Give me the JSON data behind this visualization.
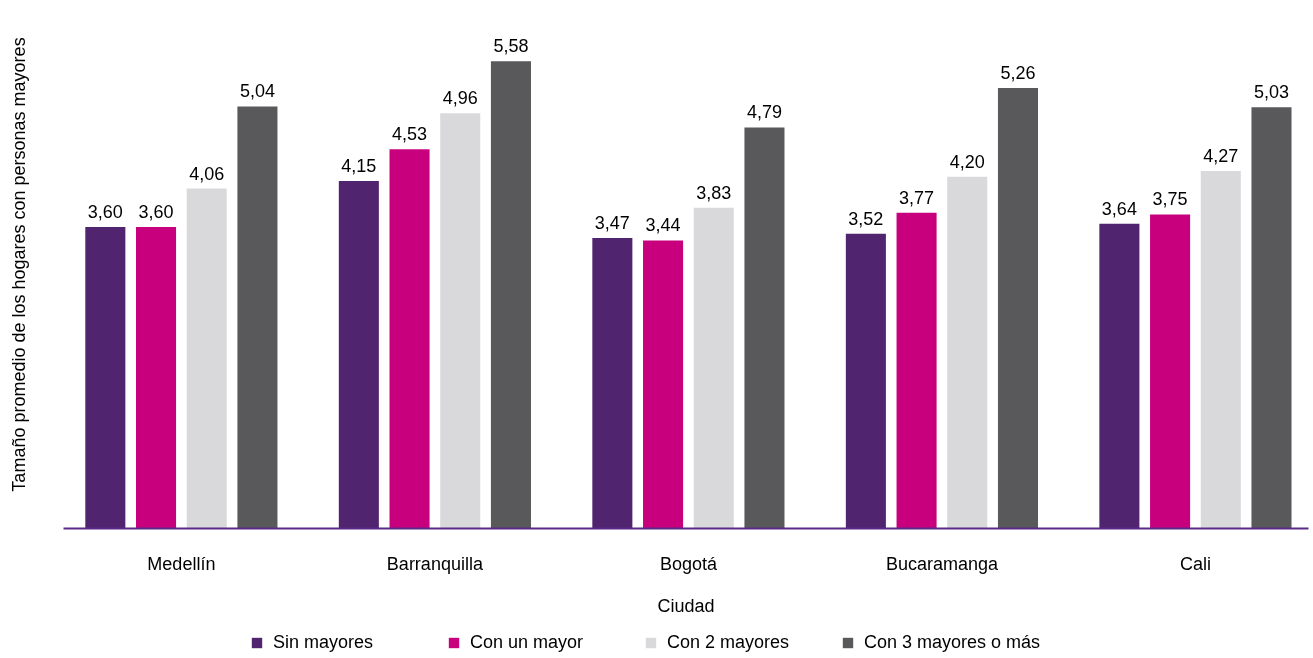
{
  "chart_data": {
    "type": "bar",
    "xlabel": "Ciudad",
    "ylabel": "Tamaño promedio de los hogares con personas mayores",
    "categories": [
      "Medellín",
      "Barranquilla",
      "Bogotá",
      "Bucaramanga",
      "Cali"
    ],
    "series": [
      {
        "name": "Sin mayores",
        "color": "#51246f",
        "values": [
          3.6,
          4.15,
          3.47,
          3.52,
          3.64
        ],
        "value_labels": [
          "3,60",
          "4,15",
          "3,47",
          "3,52",
          "3,64"
        ]
      },
      {
        "name": "Con un mayor",
        "color": "#c8007e",
        "values": [
          3.6,
          4.53,
          3.44,
          3.77,
          3.75
        ],
        "value_labels": [
          "3,60",
          "4,53",
          "3,44",
          "3,77",
          "3,75"
        ]
      },
      {
        "name": "Con 2 mayores",
        "color": "#d9d9db",
        "values": [
          4.06,
          4.96,
          3.83,
          4.2,
          4.27
        ],
        "value_labels": [
          "4,06",
          "4,96",
          "3,83",
          "4,20",
          "4,27"
        ]
      },
      {
        "name": "Con 3 mayores o más",
        "color": "#59595b",
        "values": [
          5.04,
          5.58,
          4.79,
          5.26,
          5.03
        ],
        "value_labels": [
          "5,04",
          "5,58",
          "4,79",
          "5,26",
          "5,03"
        ]
      }
    ],
    "tick_labels": "x",
    "legend": "bottom"
  }
}
